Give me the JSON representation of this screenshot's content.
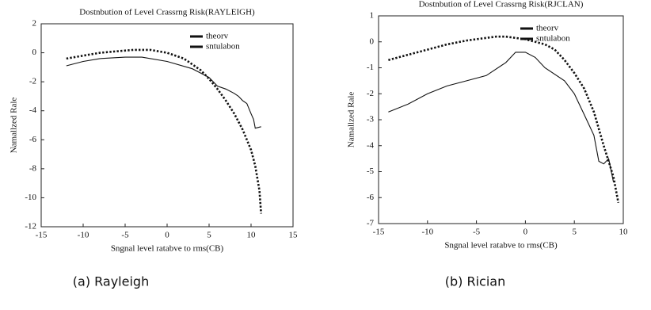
{
  "chart_data": [
    {
      "type": "line",
      "title": "Dostnbution of Level Crassrng Risk(RAYLEIGH)",
      "xlabel": "Sngnal level ratabve to rms(CB)",
      "ylabel": "Namallzed Rale",
      "caption": "(a) Rayleigh",
      "xlim": [
        -15,
        15
      ],
      "xticks": [
        -15,
        -10,
        -5,
        0,
        5,
        10,
        15
      ],
      "ylim": [
        -12,
        2
      ],
      "yticks": [
        2,
        0,
        -2,
        -4,
        -6,
        -8,
        -10,
        -12
      ],
      "legend": "upper right",
      "series": [
        {
          "name": "theorv",
          "color": "#111111",
          "linestyle": "dotted",
          "x": [
            -12,
            -10,
            -8,
            -6,
            -4,
            -3,
            -2,
            0,
            2,
            4,
            5,
            6,
            7,
            8,
            9,
            10,
            10.5,
            11,
            11.2
          ],
          "values": [
            -0.4,
            -0.2,
            0.0,
            0.1,
            0.2,
            0.2,
            0.2,
            0.0,
            -0.4,
            -1.2,
            -1.8,
            -2.5,
            -3.3,
            -4.2,
            -5.3,
            -6.7,
            -7.8,
            -9.5,
            -11.1
          ]
        },
        {
          "name": "sntulabon",
          "color": "#111111",
          "linestyle": "solid",
          "x": [
            -12,
            -10,
            -8,
            -5,
            -3,
            0,
            3,
            5,
            6,
            7,
            8,
            8.5,
            9,
            9.5,
            10,
            10.3,
            10.5,
            11.2
          ],
          "values": [
            -0.9,
            -0.6,
            -0.4,
            -0.3,
            -0.3,
            -0.6,
            -1.1,
            -1.7,
            -2.3,
            -2.5,
            -2.8,
            -3.0,
            -3.3,
            -3.5,
            -4.2,
            -4.6,
            -5.2,
            -5.1
          ]
        }
      ]
    },
    {
      "type": "line",
      "title": "Dostnbution of Level Crassrng Risk(RJCLAN)",
      "xlabel": "Sngnal level ratabve to rms(CB)",
      "ylabel": "Namallzed Rale",
      "caption": "(b) Rician",
      "xlim": [
        -15,
        10
      ],
      "xticks": [
        -15,
        -10,
        -5,
        0,
        5,
        10
      ],
      "ylim": [
        -7,
        1
      ],
      "yticks": [
        1,
        0,
        -1,
        -2,
        -3,
        -4,
        -5,
        -6,
        -7
      ],
      "legend": "upper right",
      "series": [
        {
          "name": "theorv",
          "color": "#111111",
          "linestyle": "dotted",
          "x": [
            -14,
            -12,
            -10,
            -8,
            -6,
            -4,
            -3,
            -2,
            0,
            2,
            3,
            4,
            5,
            6,
            7,
            8,
            8.5,
            9,
            9.5
          ],
          "values": [
            -0.7,
            -0.5,
            -0.3,
            -0.1,
            0.05,
            0.15,
            0.2,
            0.2,
            0.1,
            -0.1,
            -0.3,
            -0.7,
            -1.2,
            -1.8,
            -2.7,
            -4.0,
            -4.6,
            -5.2,
            -6.2
          ]
        },
        {
          "name": "sntulabon",
          "color": "#111111",
          "linestyle": "solid",
          "x": [
            -14,
            -12,
            -10,
            -8,
            -6,
            -4,
            -2,
            -1,
            0,
            1,
            2,
            4,
            5,
            6,
            7,
            7.5,
            8,
            8.5,
            9
          ],
          "values": [
            -2.7,
            -2.4,
            -2.0,
            -1.7,
            -1.5,
            -1.3,
            -0.8,
            -0.4,
            -0.4,
            -0.6,
            -1.0,
            -1.5,
            -2.0,
            -2.8,
            -3.6,
            -4.6,
            -4.7,
            -4.5,
            -5.4
          ]
        }
      ]
    }
  ]
}
